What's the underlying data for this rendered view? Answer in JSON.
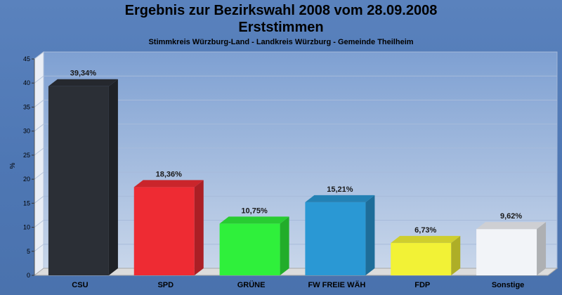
{
  "chart_data": {
    "type": "bar",
    "title": "Ergebnis zur Bezirkswahl 2008 vom 28.09.2008",
    "subtitle_line": "Erststimmen",
    "subtitle": "Stimmkreis Würzburg-Land - Landkreis Würzburg - Gemeinde Theilheim",
    "ylabel": "%",
    "xlabel": "",
    "ylim": [
      0,
      45
    ],
    "yticks": [
      0,
      5,
      10,
      15,
      20,
      25,
      30,
      35,
      40,
      45
    ],
    "grid": true,
    "categories": [
      "CSU",
      "SPD",
      "GRÜNE",
      "FW FREIE WÄH",
      "FDP",
      "Sonstige"
    ],
    "values": [
      39.34,
      18.36,
      10.75,
      15.21,
      6.73,
      9.62
    ],
    "labels": [
      "39,34%",
      "18,36%",
      "10,75%",
      "15,21%",
      "6,73%",
      "9,62%"
    ],
    "colors": [
      "#2b2f36",
      "#ee2b33",
      "#2ff03b",
      "#2a98d4",
      "#f2f236",
      "#f2f4f8"
    ]
  }
}
